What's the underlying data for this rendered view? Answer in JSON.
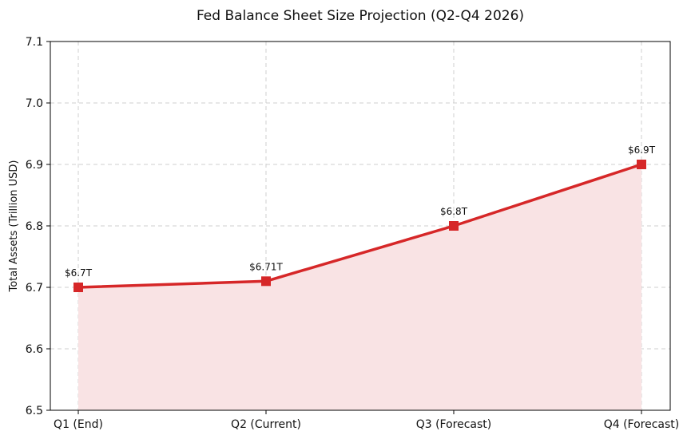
{
  "chart_data": {
    "type": "line",
    "title": "Fed Balance Sheet Size Projection (Q2-Q4 2026)",
    "xlabel": "",
    "ylabel": "Total Assets (Trillion USD)",
    "categories": [
      "Q1 (End)",
      "Q2 (Current)",
      "Q3 (Forecast)",
      "Q4 (Forecast)"
    ],
    "series": [
      {
        "values": [
          6.7,
          6.71,
          6.8,
          6.9
        ],
        "labels": [
          "$6.7T",
          "$6.71T",
          "$6.8T",
          "$6.9T"
        ]
      }
    ],
    "ylim": [
      6.5,
      7.1
    ],
    "yticks": [
      6.5,
      6.6,
      6.7,
      6.8,
      6.9,
      7.0,
      7.1
    ],
    "ytick_labels": [
      "6.5",
      "6.6",
      "6.7",
      "6.8",
      "6.9",
      "7.0",
      "7.1"
    ],
    "grid": true,
    "area_fill": true,
    "colors": {
      "line": "#d62728",
      "fill": "#f9e3e4"
    }
  }
}
